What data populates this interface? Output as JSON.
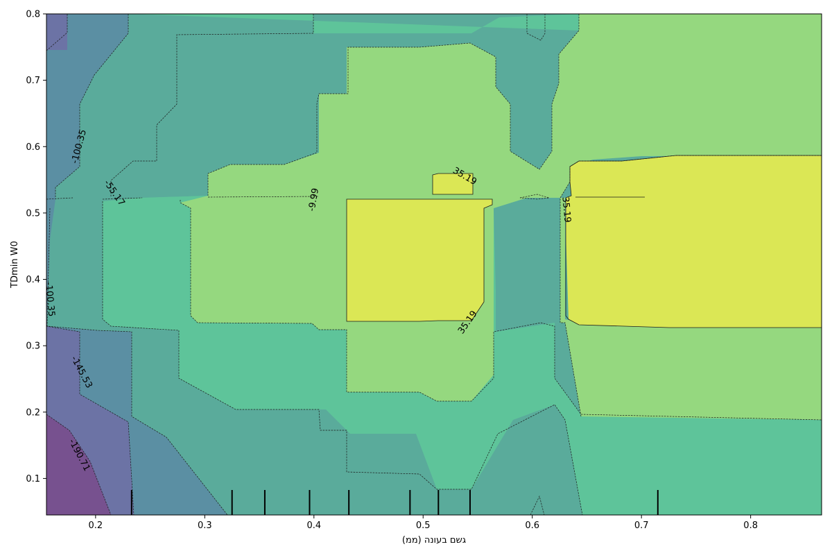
{
  "chart_data": {
    "type": "contour",
    "title": "",
    "xlabel": "גשם בעונה (ממ)",
    "ylabel": "TDmin W0",
    "xlim": [
      0.155,
      0.865
    ],
    "ylim": [
      0.045,
      0.8
    ],
    "x_ticks": [
      "0.2",
      "0.3",
      "0.4",
      "0.5",
      "0.6",
      "0.7",
      "0.8"
    ],
    "y_ticks": [
      "0.1",
      "0.2",
      "0.3",
      "0.4",
      "0.5",
      "0.6",
      "0.7",
      "0.8"
    ],
    "levels": [
      "-190.71",
      "-145.53",
      "-100.35",
      "-55.17",
      "-9.99",
      "35.19"
    ],
    "colormap": "viridis",
    "contour_labels": [
      {
        "text": "-190.71",
        "x": 0.185,
        "y": 0.135
      },
      {
        "text": "-145.53",
        "x": 0.187,
        "y": 0.26
      },
      {
        "text": "-100.35",
        "x": 0.158,
        "y": 0.37
      },
      {
        "text": "-100.35",
        "x": 0.185,
        "y": 0.6
      },
      {
        "text": "-55.17",
        "x": 0.217,
        "y": 0.53
      },
      {
        "text": "-9.99",
        "x": 0.4,
        "y": 0.52
      },
      {
        "text": "35.19",
        "x": 0.538,
        "y": 0.555
      },
      {
        "text": "35.19",
        "x": 0.541,
        "y": 0.335
      },
      {
        "text": "35.19",
        "x": 0.631,
        "y": 0.505
      }
    ],
    "rug_x": [
      0.233,
      0.325,
      0.355,
      0.396,
      0.432,
      0.488,
      0.514,
      0.543,
      0.715
    ]
  }
}
